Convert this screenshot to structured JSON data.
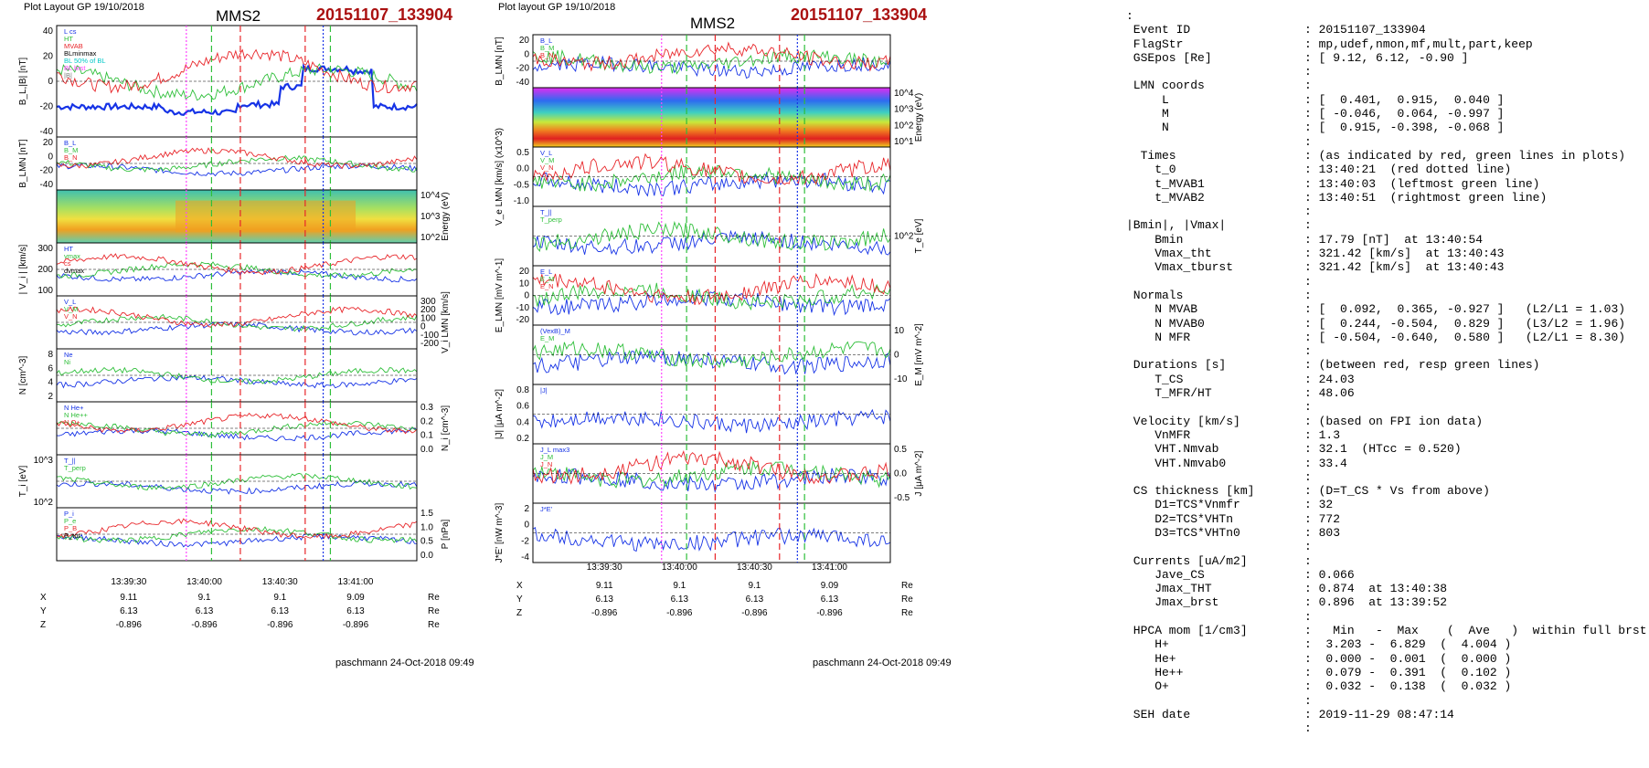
{
  "left_header": "Plot Layout GP 19/10/2018",
  "mid_header": "Plot layout GP 19/10/2018",
  "spacecraft": "MMS2",
  "event_id": "20151107_133904",
  "footer": "paschmann 24-Oct-2018 09:49",
  "colors": {
    "red": "#e8262a",
    "green": "#2fbf3a",
    "blue": "#1633e6",
    "magenta": "#ff44ff",
    "cyan": "#00c8c8",
    "darkred": "#a11a1a",
    "gray": "#7f7f7f"
  },
  "chart_data": [
    {
      "type": "line",
      "panel": "left",
      "time_ticks": [
        "13:39:30",
        "13:40:00",
        "13:40:30",
        "13:41:00"
      ],
      "ephemeris": {
        "rows": [
          {
            "name": "X",
            "values": [
              "9.11",
              "9.1",
              "9.1",
              "9.09"
            ],
            "unit": "Re"
          },
          {
            "name": "Y",
            "values": [
              "6.13",
              "6.13",
              "6.13",
              "6.13"
            ],
            "unit": "Re"
          },
          {
            "name": "Z",
            "values": [
              "-0.896",
              "-0.896",
              "-0.896",
              "-0.896"
            ],
            "unit": "Re"
          }
        ]
      },
      "subplots": [
        {
          "ylabel": "B_L,|B| [nT]",
          "yticks": [
            "40",
            "20",
            "0",
            "-20",
            "-40"
          ],
          "legend": [
            "L cs",
            "HT",
            "MVAB",
            "BLminmax",
            "BL 50% of BL",
            "BL brst",
            "|B|"
          ]
        },
        {
          "ylabel": "B_LMN [nT]",
          "yticks": [
            "20",
            "0",
            "-20",
            "-40"
          ],
          "legend": [
            "B_L",
            "B_M",
            "B_N"
          ]
        },
        {
          "ylabel": "Energy (eV)",
          "yticks_right": [
            "10^4",
            "10^3",
            "10^2"
          ]
        },
        {
          "ylabel": "| V_i | [km/s]",
          "yticks": [
            "300",
            "200",
            "100"
          ],
          "legend": [
            "HT",
            "vmax",
            "cs",
            "dvmax"
          ]
        },
        {
          "ylabel": "V_i LMN [km/s]",
          "yticks_right": [
            "300",
            "200",
            "100",
            "0",
            "-100",
            "-200"
          ],
          "legend": [
            "V_L",
            "V_M",
            "V_N"
          ]
        },
        {
          "ylabel": "N [cm^-3]",
          "yticks": [
            "8",
            "6",
            "4",
            "2"
          ],
          "legend": [
            "Ne",
            "Ni"
          ]
        },
        {
          "ylabel": "N_i [cm^-3]",
          "yticks_right": [
            "0.3",
            "0.2",
            "0.1",
            "0.0"
          ],
          "legend": [
            "N He+",
            "N He++",
            "N O+"
          ]
        },
        {
          "ylabel": "T_i [eV]",
          "yticks": [
            "10^3",
            "10^2"
          ],
          "legend": [
            "T_||",
            "T_perp"
          ]
        },
        {
          "ylabel": "P [nPa]",
          "yticks_right": [
            "1.5",
            "1.0",
            "0.5",
            "0.0"
          ],
          "legend": [
            "P_i",
            "P_e",
            "P_B",
            "P_tot"
          ]
        }
      ]
    },
    {
      "type": "line",
      "panel": "middle",
      "time_ticks": [
        "13:39:30",
        "13:40:00",
        "13:40:30",
        "13:41:00"
      ],
      "ephemeris": {
        "rows": [
          {
            "name": "X",
            "values": [
              "9.11",
              "9.1",
              "9.1",
              "9.09"
            ],
            "unit": "Re"
          },
          {
            "name": "Y",
            "values": [
              "6.13",
              "6.13",
              "6.13",
              "6.13"
            ],
            "unit": "Re"
          },
          {
            "name": "Z",
            "values": [
              "-0.896",
              "-0.896",
              "-0.896",
              "-0.896"
            ],
            "unit": "Re"
          }
        ]
      },
      "subplots": [
        {
          "ylabel": "B_LMN [nT]",
          "yticks": [
            "20",
            "0",
            "-20",
            "-40"
          ],
          "legend": [
            "B_L",
            "B_M",
            "B_N"
          ]
        },
        {
          "ylabel": "Energy (eV)",
          "yticks_right": [
            "10^4",
            "10^3",
            "10^2",
            "10^1"
          ]
        },
        {
          "ylabel": "V_e LMN [km/s] (x10^3)",
          "yticks": [
            "0.5",
            "0.0",
            "-0.5",
            "-1.0"
          ],
          "legend": [
            "V_L",
            "V_M",
            "V_N"
          ]
        },
        {
          "ylabel": "T_e [eV]",
          "yticks_right": [
            "10^2"
          ],
          "legend": [
            "T_||",
            "T_perp"
          ]
        },
        {
          "ylabel": "E_LMN [mV m^-1]",
          "yticks": [
            "20",
            "10",
            "0",
            "-10",
            "-20"
          ],
          "legend": [
            "E_L",
            "E_M",
            "E_N"
          ]
        },
        {
          "ylabel": "E_M [mV m^-2]",
          "yticks_right": [
            "10",
            "0",
            "-10"
          ],
          "legend": [
            "(VexB)_M",
            "E_M"
          ]
        },
        {
          "ylabel": "|J| [μA m^-2]",
          "yticks": [
            "0.8",
            "0.6",
            "0.4",
            "0.2"
          ],
          "legend": [
            "|J|"
          ]
        },
        {
          "ylabel": "J [μA m^-2]",
          "yticks_right": [
            "0.5",
            "0.0",
            "-0.5"
          ],
          "legend": [
            "J_L max3",
            "J_M",
            "J_N"
          ]
        },
        {
          "ylabel": "J*E' [nW m^-3]",
          "yticks": [
            "2",
            "0",
            "-2",
            "-4"
          ],
          "legend": [
            "J*E'"
          ]
        }
      ]
    }
  ],
  "info_lines": [
    ":",
    " Event ID                : 20151107_133904",
    " FlagStr                 : mp,udef,nmon,mf,mult,part,keep",
    " GSEpos [Re]             : [ 9.12, 6.12, -0.90 ]",
    "                         :",
    " LMN coords              :",
    "     L                   : [  0.401,  0.915,  0.040 ]",
    "     M                   : [ -0.046,  0.064, -0.997 ]",
    "     N                   : [  0.915, -0.398, -0.068 ]",
    "                         :",
    "  Times                  : (as indicated by red, green lines in plots)",
    "    t_0                  : 13:40:21  (red dotted line)",
    "    t_MVAB1              : 13:40:03  (leftmost green line)",
    "    t_MVAB2              : 13:40:51  (rightmost green line)",
    "                         :",
    "|Bmin|, |Vmax|           :",
    "    Bmin                 : 17.79 [nT]  at 13:40:54",
    "    Vmax_tht             : 321.42 [km/s]  at 13:40:43",
    "    Vmax_tburst          : 321.42 [km/s]  at 13:40:43",
    "                         :",
    " Normals                 :",
    "    N MVAB               : [  0.092,  0.365, -0.927 ]   (L2/L1 = 1.03)",
    "    N MVAB0              : [  0.244, -0.504,  0.829 ]   (L3/L2 = 1.96)",
    "    N MFR                : [ -0.504, -0.640,  0.580 ]   (L2/L1 = 8.30)",
    "                         :",
    " Durations [s]           : (between red, resp green lines)",
    "    T_CS                 : 24.03",
    "    T_MFR/HT             : 48.06",
    "                         :",
    " Velocity [km/s]         : (based on FPI ion data)",
    "    VnMFR                : 1.3",
    "    VHT.Nmvab            : 32.1  (HTcc = 0.520)",
    "    VHT.Nmvab0           : 33.4",
    "                         :",
    " CS thickness [km]       : (D=T_CS * Vs from above)",
    "    D1=TCS*Vnmfr         : 32",
    "    D2=TCS*VHTn          : 772",
    "    D3=TCS*VHTn0         : 803",
    "                         :",
    " Currents [uA/m2]        :",
    "    Jave_CS              : 0.066",
    "    Jmax_THT             : 0.874  at 13:40:38",
    "    Jmax_brst            : 0.896  at 13:39:52",
    "                         :",
    " HPCA mom [1/cm3]        :   Min   -  Max    (  Ave   )  within full brst int",
    "    H+                   :  3.203 -  6.829  (  4.004 )",
    "    He+                  :  0.000 -  0.001  (  0.000 )",
    "    He++                 :  0.079 -  0.391  (  0.102 )",
    "    O+                   :  0.032 -  0.138  (  0.032 )",
    "                         :",
    " SEH date                : 2019-11-29 08:47:14",
    "                         :"
  ]
}
